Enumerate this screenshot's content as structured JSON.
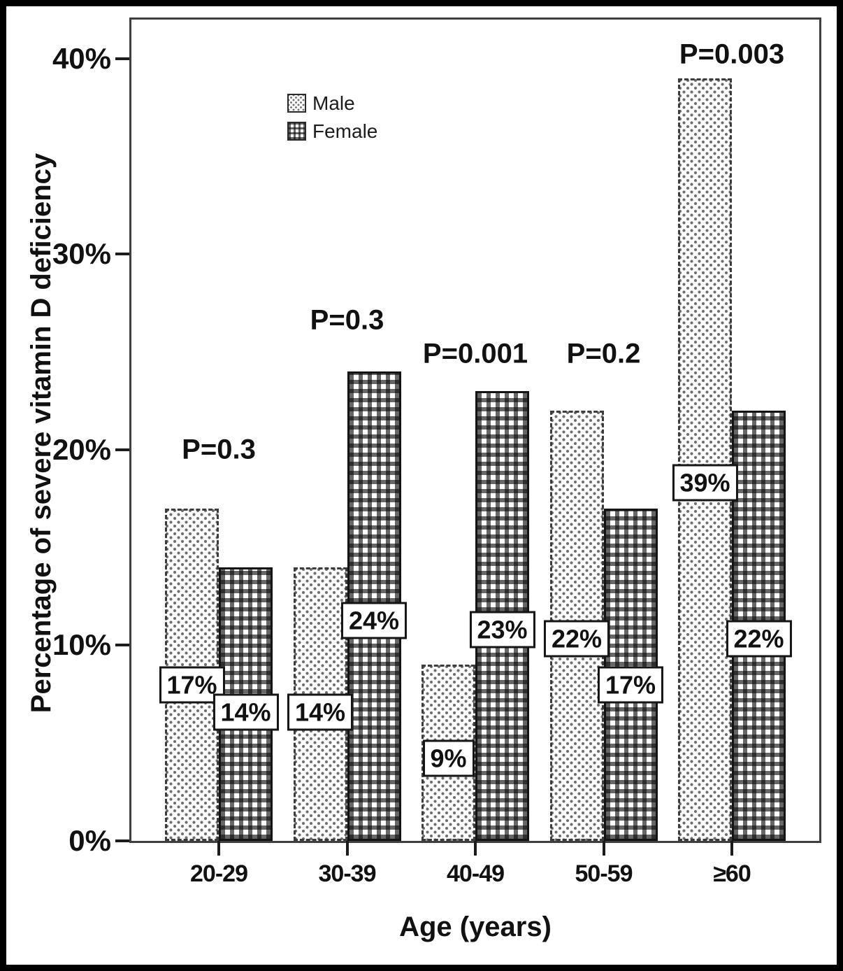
{
  "chart_data": {
    "type": "bar",
    "title": "",
    "xlabel": "Age (years)",
    "ylabel": "Percentage of severe vitamin D deficiency",
    "categories": [
      "20-29",
      "30-39",
      "40-49",
      "50-59",
      "≥60"
    ],
    "series": [
      {
        "name": "Male",
        "pattern": "dots",
        "values": [
          17,
          14,
          9,
          22,
          39
        ],
        "labels": [
          "17%",
          "14%",
          "9%",
          "22%",
          "39%"
        ]
      },
      {
        "name": "Female",
        "pattern": "grid",
        "values": [
          14,
          24,
          23,
          17,
          22
        ],
        "labels": [
          "14%",
          "24%",
          "23%",
          "17%",
          "22%"
        ]
      }
    ],
    "p_values": [
      "P=0.3",
      "P=0.3",
      "P=0.001",
      "P=0.2",
      "P=0.003"
    ],
    "p_label_y": [
      20,
      26.6,
      24.9,
      24.9,
      40.2
    ],
    "y_ticks": [
      {
        "value": 0,
        "label": "0%"
      },
      {
        "value": 10,
        "label": "10%"
      },
      {
        "value": 20,
        "label": "20%"
      },
      {
        "value": 30,
        "label": "30%"
      },
      {
        "value": 40,
        "label": "40%"
      }
    ],
    "ylim": [
      0,
      42
    ],
    "grid": false,
    "legend_position": "top-left"
  },
  "colors": {
    "ink": "#111111",
    "axis_frame": "#3f3f3f",
    "bar_border": "#141414",
    "label_box_bg": "#ffffff"
  }
}
